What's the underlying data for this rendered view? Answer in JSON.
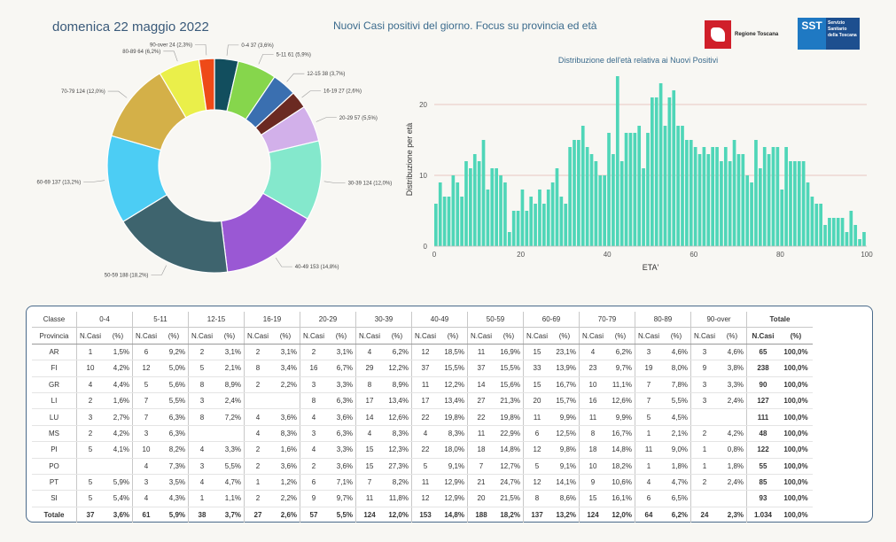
{
  "header": {
    "date": "domenica 22 maggio 2022",
    "title": "Nuovi Casi positivi del giorno. Focus su provincia ed età",
    "logo_rt": "Regione Toscana",
    "logo_sst_box": "SST",
    "logo_sst_text": "Servizio Sanitario della Toscana"
  },
  "chart_data": [
    {
      "type": "pie",
      "title": "",
      "donut": true,
      "slices": [
        {
          "label": "0-4 37 (3,6%)",
          "value": 37,
          "color": "#124e5e"
        },
        {
          "label": "5-11 61 (5,9%)",
          "value": 61,
          "color": "#86d64c"
        },
        {
          "label": "12-15 38 (3,7%)",
          "value": 38,
          "color": "#3a6fb0"
        },
        {
          "label": "16-19 27 (2,6%)",
          "value": 27,
          "color": "#6b2a22"
        },
        {
          "label": "20-29 57 (5,5%)",
          "value": 57,
          "color": "#d2b0ea"
        },
        {
          "label": "30-39 124 (12,0%)",
          "value": 124,
          "color": "#84e8cc"
        },
        {
          "label": "40-49 153 (14,8%)",
          "value": 153,
          "color": "#9a58d4"
        },
        {
          "label": "50-59 188 (18,2%)",
          "value": 188,
          "color": "#3e646e"
        },
        {
          "label": "60-69 137 (13,2%)",
          "value": 137,
          "color": "#4ccdf4"
        },
        {
          "label": "70-79 124 (12,0%)",
          "value": 124,
          "color": "#d4b048"
        },
        {
          "label": "80-89 64 (6,2%)",
          "value": 64,
          "color": "#eaef4a"
        },
        {
          "label": "90-over 24 (2,3%)",
          "value": 24,
          "color": "#ee4a18"
        }
      ]
    },
    {
      "type": "bar",
      "title": "Distribuzione dell'età relativa ai Nuovi Positivi",
      "xlabel": "ETA'",
      "ylabel": "Distribuzione per età",
      "xlim": [
        0,
        100
      ],
      "ylim": [
        0,
        24
      ],
      "xticks": [
        0,
        20,
        40,
        60,
        80,
        100
      ],
      "yticks": [
        0,
        10,
        20
      ],
      "color": "#4fd6b8",
      "x": [
        0,
        1,
        2,
        3,
        4,
        5,
        6,
        7,
        8,
        9,
        10,
        11,
        12,
        13,
        14,
        15,
        16,
        17,
        18,
        19,
        20,
        21,
        22,
        23,
        24,
        25,
        26,
        27,
        28,
        29,
        30,
        31,
        32,
        33,
        34,
        35,
        36,
        37,
        38,
        39,
        40,
        41,
        42,
        43,
        44,
        45,
        46,
        47,
        48,
        49,
        50,
        51,
        52,
        53,
        54,
        55,
        56,
        57,
        58,
        59,
        60,
        61,
        62,
        63,
        64,
        65,
        66,
        67,
        68,
        69,
        70,
        71,
        72,
        73,
        74,
        75,
        76,
        77,
        78,
        79,
        80,
        81,
        82,
        83,
        84,
        85,
        86,
        87,
        88,
        89,
        90,
        91,
        92,
        93,
        94,
        95,
        96,
        97,
        98,
        99
      ],
      "values": [
        6,
        9,
        7,
        7,
        10,
        9,
        7,
        12,
        11,
        13,
        12,
        15,
        8,
        11,
        11,
        10,
        9,
        2,
        5,
        5,
        8,
        5,
        7,
        6,
        8,
        6,
        8,
        9,
        11,
        7,
        6,
        14,
        15,
        15,
        17,
        14,
        13,
        12,
        10,
        10,
        16,
        13,
        24,
        12,
        16,
        16,
        16,
        17,
        11,
        16,
        21,
        21,
        23,
        17,
        21,
        22,
        17,
        17,
        15,
        15,
        14,
        13,
        14,
        13,
        14,
        14,
        12,
        14,
        12,
        15,
        13,
        13,
        10,
        9,
        15,
        11,
        14,
        13,
        14,
        14,
        8,
        14,
        12,
        12,
        12,
        12,
        9,
        7,
        6,
        6,
        3,
        4,
        4,
        4,
        4,
        2,
        5,
        3,
        1,
        2
      ]
    }
  ],
  "table": {
    "col_classe": "Classe",
    "col_provincia": "Provincia",
    "groups": [
      "0-4",
      "5-11",
      "12-15",
      "16-19",
      "20-29",
      "30-39",
      "40-49",
      "50-59",
      "60-69",
      "70-79",
      "80-89",
      "90-over"
    ],
    "totale_label": "Totale",
    "ncasi_label": "N.Casi",
    "pct_label": "(%)",
    "rows": [
      {
        "prov": "AR",
        "cells": [
          "1",
          "1,5%",
          "6",
          "9,2%",
          "2",
          "3,1%",
          "2",
          "3,1%",
          "2",
          "3,1%",
          "4",
          "6,2%",
          "12",
          "18,5%",
          "11",
          "16,9%",
          "15",
          "23,1%",
          "4",
          "6,2%",
          "3",
          "4,6%",
          "3",
          "4,6%"
        ],
        "tot": "65",
        "totp": "100,0%"
      },
      {
        "prov": "FI",
        "cells": [
          "10",
          "4,2%",
          "12",
          "5,0%",
          "5",
          "2,1%",
          "8",
          "3,4%",
          "16",
          "6,7%",
          "29",
          "12,2%",
          "37",
          "15,5%",
          "37",
          "15,5%",
          "33",
          "13,9%",
          "23",
          "9,7%",
          "19",
          "8,0%",
          "9",
          "3,8%"
        ],
        "tot": "238",
        "totp": "100,0%"
      },
      {
        "prov": "GR",
        "cells": [
          "4",
          "4,4%",
          "5",
          "5,6%",
          "8",
          "8,9%",
          "2",
          "2,2%",
          "3",
          "3,3%",
          "8",
          "8,9%",
          "11",
          "12,2%",
          "14",
          "15,6%",
          "15",
          "16,7%",
          "10",
          "11,1%",
          "7",
          "7,8%",
          "3",
          "3,3%"
        ],
        "tot": "90",
        "totp": "100,0%"
      },
      {
        "prov": "LI",
        "cells": [
          "2",
          "1,6%",
          "7",
          "5,5%",
          "3",
          "2,4%",
          "",
          "",
          "8",
          "6,3%",
          "17",
          "13,4%",
          "17",
          "13,4%",
          "27",
          "21,3%",
          "20",
          "15,7%",
          "16",
          "12,6%",
          "7",
          "5,5%",
          "3",
          "2,4%"
        ],
        "tot": "127",
        "totp": "100,0%"
      },
      {
        "prov": "LU",
        "cells": [
          "3",
          "2,7%",
          "7",
          "6,3%",
          "8",
          "7,2%",
          "4",
          "3,6%",
          "4",
          "3,6%",
          "14",
          "12,6%",
          "22",
          "19,8%",
          "22",
          "19,8%",
          "11",
          "9,9%",
          "11",
          "9,9%",
          "5",
          "4,5%",
          "",
          ""
        ],
        "tot": "111",
        "totp": "100,0%"
      },
      {
        "prov": "MS",
        "cells": [
          "2",
          "4,2%",
          "3",
          "6,3%",
          "",
          "",
          "4",
          "8,3%",
          "3",
          "6,3%",
          "4",
          "8,3%",
          "4",
          "8,3%",
          "11",
          "22,9%",
          "6",
          "12,5%",
          "8",
          "16,7%",
          "1",
          "2,1%",
          "2",
          "4,2%"
        ],
        "tot": "48",
        "totp": "100,0%"
      },
      {
        "prov": "PI",
        "cells": [
          "5",
          "4,1%",
          "10",
          "8,2%",
          "4",
          "3,3%",
          "2",
          "1,6%",
          "4",
          "3,3%",
          "15",
          "12,3%",
          "22",
          "18,0%",
          "18",
          "14,8%",
          "12",
          "9,8%",
          "18",
          "14,8%",
          "11",
          "9,0%",
          "1",
          "0,8%"
        ],
        "tot": "122",
        "totp": "100,0%"
      },
      {
        "prov": "PO",
        "cells": [
          "",
          "",
          "4",
          "7,3%",
          "3",
          "5,5%",
          "2",
          "3,6%",
          "2",
          "3,6%",
          "15",
          "27,3%",
          "5",
          "9,1%",
          "7",
          "12,7%",
          "5",
          "9,1%",
          "10",
          "18,2%",
          "1",
          "1,8%",
          "1",
          "1,8%"
        ],
        "tot": "55",
        "totp": "100,0%"
      },
      {
        "prov": "PT",
        "cells": [
          "5",
          "5,9%",
          "3",
          "3,5%",
          "4",
          "4,7%",
          "1",
          "1,2%",
          "6",
          "7,1%",
          "7",
          "8,2%",
          "11",
          "12,9%",
          "21",
          "24,7%",
          "12",
          "14,1%",
          "9",
          "10,6%",
          "4",
          "4,7%",
          "2",
          "2,4%"
        ],
        "tot": "85",
        "totp": "100,0%"
      },
      {
        "prov": "SI",
        "cells": [
          "5",
          "5,4%",
          "4",
          "4,3%",
          "1",
          "1,1%",
          "2",
          "2,2%",
          "9",
          "9,7%",
          "11",
          "11,8%",
          "12",
          "12,9%",
          "20",
          "21,5%",
          "8",
          "8,6%",
          "15",
          "16,1%",
          "6",
          "6,5%",
          "",
          ""
        ],
        "tot": "93",
        "totp": "100,0%"
      }
    ],
    "total_row": {
      "label": "Totale",
      "cells": [
        "37",
        "3,6%",
        "61",
        "5,9%",
        "38",
        "3,7%",
        "27",
        "2,6%",
        "57",
        "5,5%",
        "124",
        "12,0%",
        "153",
        "14,8%",
        "188",
        "18,2%",
        "137",
        "13,2%",
        "124",
        "12,0%",
        "64",
        "6,2%",
        "24",
        "2,3%"
      ],
      "tot": "1.034",
      "totp": "100,0%"
    }
  }
}
